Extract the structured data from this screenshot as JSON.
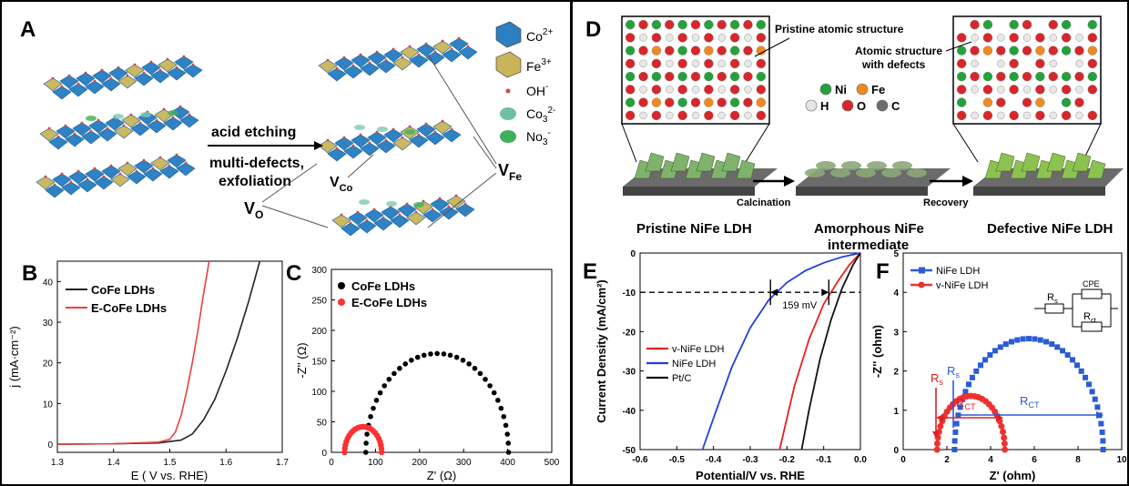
{
  "panels": {
    "A": {
      "letter": "A",
      "legend": [
        {
          "label": "Co",
          "sup": "2+",
          "color": "#2c7fc0"
        },
        {
          "label": "Fe",
          "sup": "3+",
          "color": "#c9b45b"
        },
        {
          "label": "OH",
          "sup": "-",
          "color": "#d04848"
        },
        {
          "label": "Co",
          "sub": "3",
          "sup": "2-",
          "color": "#6fbfa8"
        },
        {
          "label": "No",
          "sub": "3",
          "sup": "-",
          "color": "#3fb05a"
        }
      ],
      "arrow_top": "acid etching",
      "arrow_bottom_1": "multi-defects,",
      "arrow_bottom_2": "exfoliation",
      "vacancies": {
        "v_o": "V",
        "v_o_sub": "O",
        "v_co": "V",
        "v_co_sub": "Co",
        "v_fe": "V",
        "v_fe_sub": "Fe"
      }
    },
    "D": {
      "letter": "D",
      "label_pristine_struct": "Pristine atomic structure",
      "label_defect_struct_1": "Atomic structure",
      "label_defect_struct_2": "with defects",
      "legend": [
        {
          "label": "Ni",
          "color": "#22a33a"
        },
        {
          "label": "Fe",
          "color": "#f08a1f"
        },
        {
          "label": "H",
          "color": "#e6e6e6"
        },
        {
          "label": "O",
          "color": "#d8262a"
        },
        {
          "label": "C",
          "color": "#6b6b6b"
        }
      ],
      "step1": "Calcination",
      "step2": "Recovery",
      "caption1": "Pristine NiFe LDH",
      "caption2_1": "Amorphous NiFe",
      "caption2_2": "intermediate",
      "caption3": "Defective NiFe LDH"
    }
  },
  "chart_data": [
    {
      "panel": "B",
      "type": "line",
      "xlabel": "E ( V vs. RHE)",
      "ylabel": "j (mA·cm⁻²)",
      "xlim": [
        1.3,
        1.7
      ],
      "ylim": [
        -2,
        45
      ],
      "xticks": [
        "1.3",
        "1.4",
        "1.5",
        "1.6",
        "1.7"
      ],
      "yticks": [
        "0",
        "10",
        "20",
        "30",
        "40"
      ],
      "legend_position": "top-left",
      "series": [
        {
          "name": "CoFe LDHs",
          "color": "#222222",
          "x": [
            1.3,
            1.4,
            1.48,
            1.52,
            1.54,
            1.56,
            1.58,
            1.6,
            1.62,
            1.64,
            1.66
          ],
          "y": [
            0,
            0.1,
            0.3,
            1.0,
            2.5,
            6,
            11,
            18,
            26,
            35,
            45
          ]
        },
        {
          "name": "E-CoFe LDHs",
          "color": "#e84040",
          "x": [
            1.3,
            1.4,
            1.48,
            1.5,
            1.51,
            1.52,
            1.53,
            1.54,
            1.55,
            1.56,
            1.57
          ],
          "y": [
            0,
            0.1,
            0.5,
            1.2,
            3,
            7,
            13,
            20,
            28,
            37,
            45
          ]
        }
      ]
    },
    {
      "panel": "C",
      "type": "scatter",
      "xlabel": "Z' (Ω)",
      "ylabel": "-Z'' (Ω)",
      "xlim": [
        0,
        500
      ],
      "ylim": [
        0,
        300
      ],
      "xticks": [
        "0",
        "100",
        "200",
        "300",
        "400",
        "500"
      ],
      "yticks": [
        "0",
        "50",
        "100",
        "150",
        "200",
        "250",
        "300"
      ],
      "legend_position": "top-left",
      "series": [
        {
          "name": "CoFe LDHs",
          "color": "#000000",
          "center": 240,
          "radius": 162,
          "n": 34
        },
        {
          "name": "E-CoFe LDHs",
          "color": "#ff3030",
          "center": 72,
          "radius": 42,
          "n": 22
        }
      ]
    },
    {
      "panel": "E",
      "type": "line",
      "xlabel": "Potential/V vs. RHE",
      "ylabel": "Current Density (mA/cm²)",
      "xlim": [
        -0.6,
        0.0
      ],
      "ylim": [
        -50,
        0
      ],
      "xticks": [
        "-0.6",
        "-0.5",
        "-0.4",
        "-0.3",
        "-0.2",
        "-0.1",
        "0.0"
      ],
      "yticks": [
        "0",
        "-10",
        "-20",
        "-30",
        "-40",
        "-50"
      ],
      "annotation": "159 mV",
      "legend_position": "middle-left",
      "series": [
        {
          "name": "v-NiFe LDH",
          "color": "#e82020",
          "x": [
            0.0,
            -0.03,
            -0.06,
            -0.1,
            -0.14,
            -0.18,
            -0.22
          ],
          "y": [
            0,
            -3,
            -7,
            -13,
            -22,
            -34,
            -50
          ]
        },
        {
          "name": "NiFe LDH",
          "color": "#2040e0",
          "x": [
            0.0,
            -0.05,
            -0.1,
            -0.15,
            -0.2,
            -0.25,
            -0.3,
            -0.35,
            -0.4,
            -0.43
          ],
          "y": [
            0,
            -1,
            -2.5,
            -4.5,
            -7.5,
            -12,
            -19,
            -29,
            -42,
            -50
          ]
        },
        {
          "name": "Pt/C",
          "color": "#111111",
          "x": [
            0.0,
            -0.02,
            -0.05,
            -0.08,
            -0.11,
            -0.14,
            -0.16
          ],
          "y": [
            0,
            -3,
            -9,
            -17,
            -27,
            -40,
            -50
          ]
        }
      ]
    },
    {
      "panel": "F",
      "type": "scatter",
      "xlabel": "Z' (ohm)",
      "ylabel": "-Z'' (ohm)",
      "xlim": [
        0,
        10
      ],
      "ylim": [
        0,
        5
      ],
      "xticks": [
        "0",
        "2",
        "4",
        "6",
        "8",
        "10"
      ],
      "yticks": [
        "0",
        "1",
        "2",
        "3",
        "4",
        "5"
      ],
      "legend_position": "top-left",
      "annotations": {
        "rs": "R",
        "rs_sub": "s",
        "rct": "R",
        "rct_sub": "CT",
        "cpe": "CPE",
        "rs_circuit_sub": "s",
        "rct_circuit_sub": "ct"
      },
      "series": [
        {
          "name": "NiFe LDH",
          "color": "#2b5bd6",
          "center": 5.75,
          "radius": 3.4,
          "n": 40
        },
        {
          "name": "v-NiFe LDH",
          "color": "#f03030",
          "center": 3.1,
          "radius": 1.55,
          "n": 28
        }
      ]
    }
  ]
}
